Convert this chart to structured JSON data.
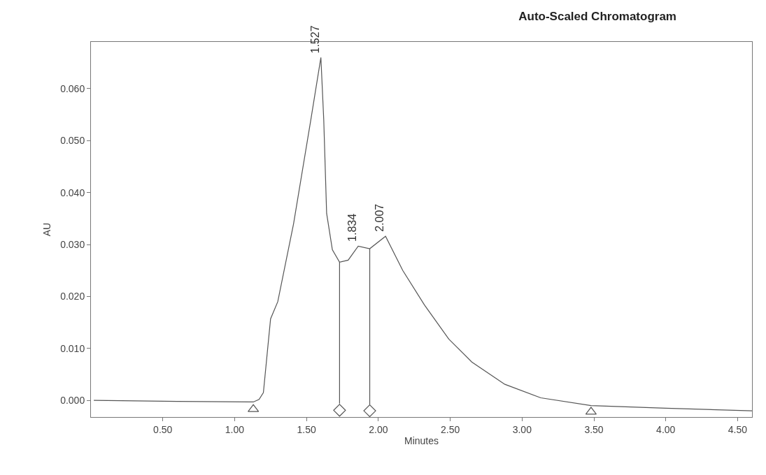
{
  "chart_data": {
    "type": "line",
    "title": "Auto-Scaled Chromatogram",
    "xlabel": "Minutes",
    "ylabel": "AU",
    "xlim": [
      0.0,
      4.6
    ],
    "xticks": [
      {
        "value": 0.5,
        "label": "0.50"
      },
      {
        "value": 1.0,
        "label": "1.00"
      },
      {
        "value": 1.5,
        "label": "1.50"
      },
      {
        "value": 2.0,
        "label": "2.00"
      },
      {
        "value": 2.5,
        "label": "2.50"
      },
      {
        "value": 3.0,
        "label": "3.00"
      },
      {
        "value": 3.5,
        "label": "3.50"
      },
      {
        "value": 4.0,
        "label": "4.00"
      },
      {
        "value": 4.5,
        "label": "4.50"
      }
    ],
    "ylim": [
      -0.0032,
      0.069
    ],
    "yticks": [
      {
        "value": 0,
        "label": "0.000"
      },
      {
        "value": 0.01,
        "label": "0.010"
      },
      {
        "value": 0.02,
        "label": "0.020"
      },
      {
        "value": 0.03,
        "label": "0.030"
      },
      {
        "value": 0.04,
        "label": "0.040"
      },
      {
        "value": 0.05,
        "label": "0.050"
      },
      {
        "value": 0.06,
        "label": "0.060"
      }
    ],
    "marker": "none",
    "series": [
      {
        "color": "#555555",
        "x": [
          0.02,
          0.6,
          1.1,
          1.13,
          1.17,
          1.2,
          1.25,
          1.3,
          1.41,
          1.53,
          1.6,
          1.62,
          1.64,
          1.68,
          1.73,
          1.79,
          1.86,
          1.94,
          2.05,
          2.17,
          2.32,
          2.49,
          2.65,
          2.88,
          3.13,
          3.48,
          4.0,
          4.6
        ],
        "values": [
          0.0,
          -0.0002,
          -0.0003,
          -0.0003,
          0.0002,
          0.0015,
          0.0157,
          0.019,
          0.034,
          0.054,
          0.066,
          0.054,
          0.036,
          0.029,
          0.0266,
          0.027,
          0.0297,
          0.0292,
          0.0316,
          0.025,
          0.0184,
          0.0118,
          0.0074,
          0.0031,
          0.0005,
          -0.001,
          -0.0015,
          -0.002
        ]
      },
      {
        "color": "#555555",
        "x": [
          1.73,
          1.73
        ],
        "values": [
          0.0266,
          -0.0006
        ]
      },
      {
        "color": "#555555",
        "x": [
          1.94,
          1.94
        ],
        "values": [
          0.0292,
          -0.0008
        ]
      },
      {
        "type": "scatter",
        "marker": "triangle",
        "color": "#555555",
        "x": [
          1.13,
          3.48
        ],
        "values": [
          -0.0017,
          -0.0022
        ]
      },
      {
        "type": "scatter",
        "marker": "diamond",
        "color": "#555555",
        "x": [
          1.73,
          1.94
        ],
        "values": [
          -0.0019,
          -0.002
        ]
      }
    ],
    "annotations": [
      {
        "text": "1.527",
        "x": 1.6,
        "y": 0.066
      },
      {
        "text": "1.834",
        "x": 1.86,
        "y": 0.0297
      },
      {
        "text": "2.007",
        "x": 2.05,
        "y": 0.0316
      }
    ]
  }
}
